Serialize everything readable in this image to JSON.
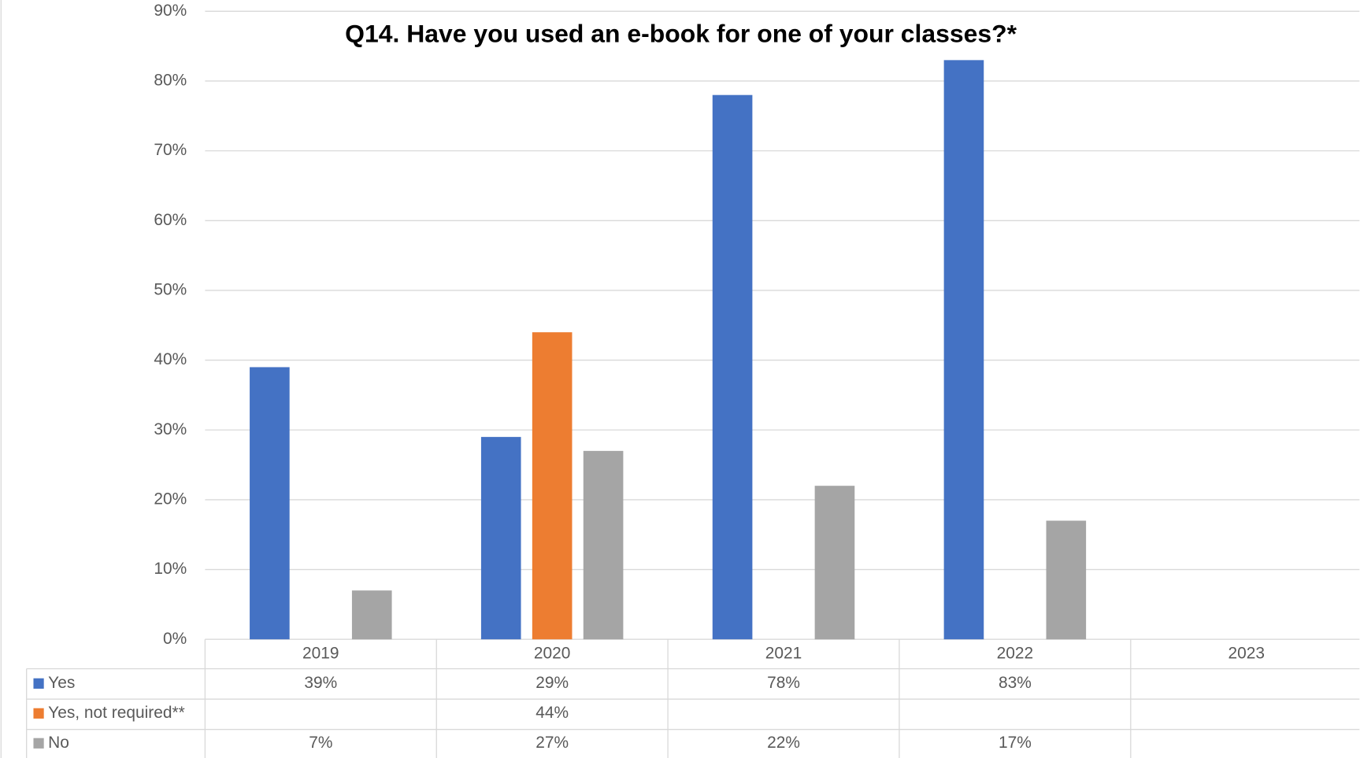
{
  "chart_data": {
    "type": "bar",
    "title": "Q14. Have you used an e-book for one of your classes?*",
    "categories": [
      "2019",
      "2020",
      "2021",
      "2022",
      "2023"
    ],
    "series": [
      {
        "name": "Yes",
        "color": "#4472c4",
        "values": [
          39,
          29,
          78,
          83,
          null
        ],
        "value_labels": [
          "39%",
          "29%",
          "78%",
          "83%",
          null
        ]
      },
      {
        "name": "Yes, not required**",
        "color": "#ed7d31",
        "values": [
          null,
          44,
          null,
          null,
          null
        ],
        "value_labels": [
          null,
          "44%",
          null,
          null,
          null
        ]
      },
      {
        "name": "No",
        "color": "#a5a5a5",
        "values": [
          7,
          27,
          22,
          17,
          null
        ],
        "value_labels": [
          "7%",
          "27%",
          "22%",
          "17%",
          null
        ]
      }
    ],
    "ylim": [
      0,
      90
    ],
    "yticks": [
      {
        "value": 0,
        "label": "0%"
      },
      {
        "value": 10,
        "label": "10%"
      },
      {
        "value": 20,
        "label": "20%"
      },
      {
        "value": 30,
        "label": "30%"
      },
      {
        "value": 40,
        "label": "40%"
      },
      {
        "value": 50,
        "label": "50%"
      },
      {
        "value": 60,
        "label": "60%"
      },
      {
        "value": 70,
        "label": "70%"
      },
      {
        "value": 80,
        "label": "80%"
      },
      {
        "value": 90,
        "label": "90%"
      }
    ],
    "grid": true
  }
}
